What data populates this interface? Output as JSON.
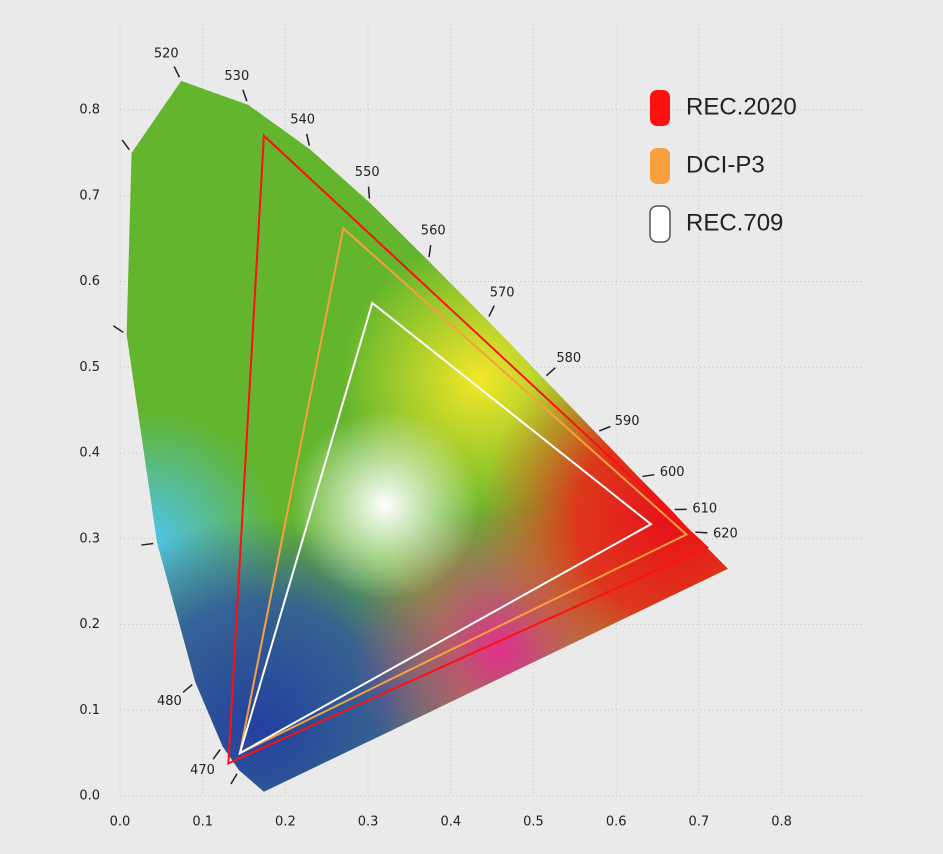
{
  "chart_data": {
    "type": "chromaticity",
    "xlim": [
      0,
      0.9
    ],
    "ylim": [
      0,
      0.9
    ],
    "xticks": [
      {
        "value": 0,
        "label": "0.0"
      },
      0.1,
      0.2,
      0.3,
      0.4,
      0.5,
      0.6,
      0.7,
      0.8
    ],
    "yticks": [
      {
        "value": 0,
        "label": "0.0"
      },
      0.1,
      0.2,
      0.3,
      0.4,
      0.5,
      0.6,
      0.7,
      0.8
    ],
    "grid": true,
    "legend": "top-right",
    "locus": {
      "x": [
        0.174,
        0.144,
        0.124,
        0.091,
        0.045,
        0.008,
        0.014,
        0.074,
        0.155,
        0.23,
        0.302,
        0.373,
        0.444,
        0.512,
        0.575,
        0.627,
        0.666,
        0.691,
        0.735
      ],
      "y": [
        0.005,
        0.03,
        0.058,
        0.133,
        0.295,
        0.538,
        0.75,
        0.834,
        0.806,
        0.754,
        0.692,
        0.624,
        0.555,
        0.487,
        0.424,
        0.372,
        0.334,
        0.308,
        0.265
      ],
      "wavelengths": [
        null,
        null,
        "470",
        "480",
        null,
        null,
        null,
        "520",
        "530",
        "540",
        "550",
        "560",
        "570",
        "580",
        "590",
        "600",
        "610",
        "620",
        null
      ]
    },
    "series": [
      {
        "name": "REC.2020",
        "color": "#ff1010",
        "x": [
          0.71,
          0.174,
          0.131
        ],
        "y": [
          0.29,
          0.77,
          0.038
        ]
      },
      {
        "name": "DCI-P3",
        "color": "#f8a040",
        "x": [
          0.685,
          0.27,
          0.145
        ],
        "y": [
          0.305,
          0.662,
          0.05
        ]
      },
      {
        "name": "REC.709",
        "color": "#ffffff",
        "x": [
          0.642,
          0.305,
          0.145
        ],
        "y": [
          0.317,
          0.575,
          0.05
        ]
      }
    ]
  }
}
